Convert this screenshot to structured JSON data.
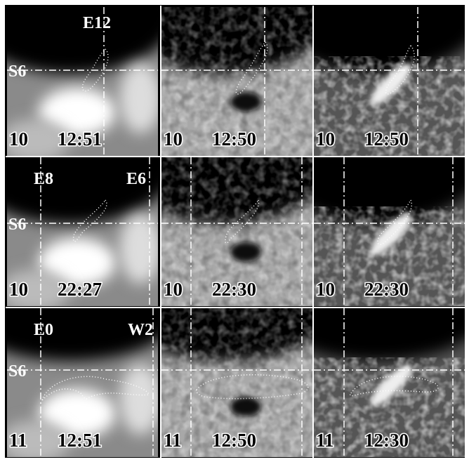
{
  "rows": [
    {
      "coords": [
        "E12"
      ],
      "latitude": "S6",
      "panels": [
        {
          "day": "10",
          "time": "12:51"
        },
        {
          "day": "10",
          "time": "12:50"
        },
        {
          "day": "10",
          "time": "12:50"
        }
      ]
    },
    {
      "coords": [
        "E8",
        "E6"
      ],
      "latitude": "S6",
      "panels": [
        {
          "day": "10",
          "time": "22:27"
        },
        {
          "day": "10",
          "time": "22:30"
        },
        {
          "day": "10",
          "time": "22:30"
        }
      ]
    },
    {
      "coords": [
        "E0",
        "W2"
      ],
      "latitude": "S6",
      "panels": [
        {
          "day": "11",
          "time": "12:51"
        },
        {
          "day": "11",
          "time": "12:50"
        },
        {
          "day": "11",
          "time": "12:30"
        }
      ]
    }
  ]
}
